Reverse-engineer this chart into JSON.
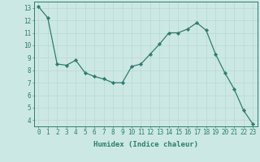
{
  "x": [
    0,
    1,
    2,
    3,
    4,
    5,
    6,
    7,
    8,
    9,
    10,
    11,
    12,
    13,
    14,
    15,
    16,
    17,
    18,
    19,
    20,
    21,
    22,
    23
  ],
  "y": [
    13.1,
    12.2,
    8.5,
    8.4,
    8.8,
    7.8,
    7.5,
    7.3,
    7.0,
    7.0,
    8.3,
    8.5,
    9.3,
    10.1,
    11.0,
    11.0,
    11.3,
    11.8,
    11.2,
    9.3,
    7.8,
    6.5,
    4.8,
    3.7
  ],
  "line_color": "#2e7d6e",
  "marker": "D",
  "marker_size": 2.2,
  "bg_color": "#cce8e4",
  "grid_color": "#b8d8d4",
  "xlabel": "Humidex (Indice chaleur)",
  "ylim": [
    3.5,
    13.5
  ],
  "xlim": [
    -0.5,
    23.5
  ],
  "yticks": [
    4,
    5,
    6,
    7,
    8,
    9,
    10,
    11,
    12,
    13
  ],
  "xticks": [
    0,
    1,
    2,
    3,
    4,
    5,
    6,
    7,
    8,
    9,
    10,
    11,
    12,
    13,
    14,
    15,
    16,
    17,
    18,
    19,
    20,
    21,
    22,
    23
  ],
  "axis_color": "#2e7d6e",
  "tick_color": "#2e7d6e",
  "label_fontsize": 6.5,
  "tick_fontsize": 5.5
}
